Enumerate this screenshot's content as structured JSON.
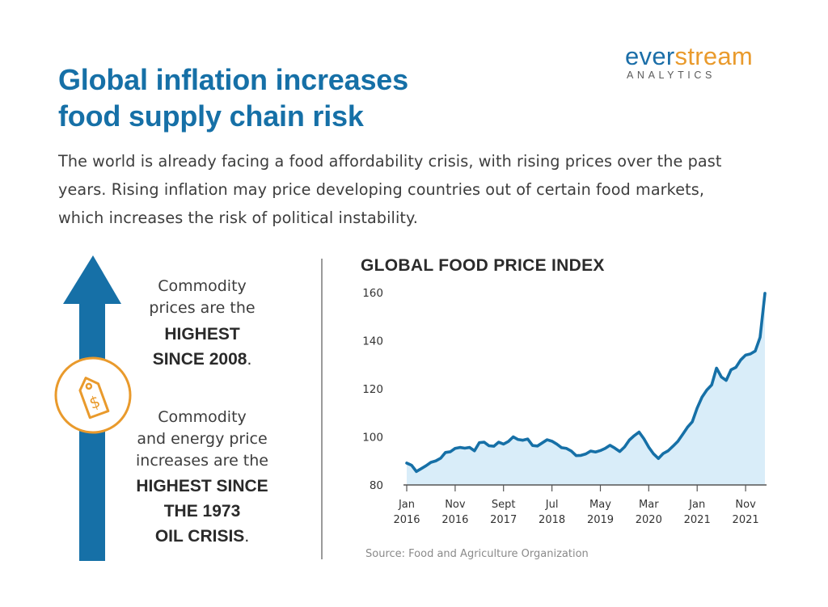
{
  "brand": {
    "logo_part1": "ever",
    "logo_part2": "stream",
    "logo_sub": "ANALYTICS",
    "color_primary": "#1b6ea8",
    "color_accent": "#e99a2c"
  },
  "header": {
    "title_line1": "Global inflation increases",
    "title_line2": "food supply chain risk",
    "intro": "The world is already facing a food affordability crisis, with rising prices over the past years. Rising inflation may price developing countries out of certain food markets, which increases the risk of political instability."
  },
  "left_panel": {
    "arrow_icon": "up-arrow-icon",
    "tag_icon": "dollar-price-tag-icon",
    "stat1_line1": "Commodity",
    "stat1_line2": "prices are the",
    "stat1_bold1": "HIGHEST",
    "stat1_bold2": "SINCE 2008",
    "stat1_end": ".",
    "stat2_line1": "Commodity",
    "stat2_line2": "and energy price",
    "stat2_line3": "increases are the",
    "stat2_bold1": "HIGHEST SINCE",
    "stat2_bold2": "THE 1973",
    "stat2_bold3": "OIL CRISIS",
    "stat2_end": "."
  },
  "chart_data": {
    "type": "area",
    "title": "GLOBAL FOOD PRICE INDEX",
    "xlabel": "",
    "ylabel": "",
    "ylim": [
      80,
      160
    ],
    "yticks": [
      "80",
      "100",
      "120",
      "140",
      "160"
    ],
    "xticks": [
      {
        "line1": "Jan",
        "line2": "2016",
        "month_index": 0
      },
      {
        "line1": "Nov",
        "line2": "2016",
        "month_index": 10
      },
      {
        "line1": "Sept",
        "line2": "2017",
        "month_index": 20
      },
      {
        "line1": "Jul",
        "line2": "2018",
        "month_index": 30
      },
      {
        "line1": "May",
        "line2": "2019",
        "month_index": 40
      },
      {
        "line1": "Mar",
        "line2": "2020",
        "month_index": 50
      },
      {
        "line1": "Jan",
        "line2": "2021",
        "month_index": 60
      },
      {
        "line1": "Nov",
        "line2": "2021",
        "month_index": 70
      }
    ],
    "series": [
      {
        "start": "Jan 2016",
        "frequency": "monthly",
        "values": [
          89.1,
          88.2,
          85.6,
          86.8,
          88.0,
          89.4,
          90.0,
          91.1,
          93.5,
          93.8,
          95.2,
          95.6,
          95.3,
          95.6,
          94.2,
          97.6,
          97.8,
          96.3,
          96.1,
          97.8,
          97.0,
          98.1,
          100.0,
          98.9,
          98.6,
          99.1,
          96.4,
          96.2,
          97.5,
          98.8,
          98.2,
          97.0,
          95.5,
          95.2,
          94.1,
          92.2,
          92.3,
          92.9,
          94.1,
          93.7,
          94.3,
          95.2,
          96.5,
          95.3,
          93.9,
          95.8,
          98.7,
          100.5,
          102.0,
          99.2,
          95.7,
          92.9,
          91.0,
          93.1,
          94.2,
          96.1,
          98.1,
          101.0,
          104.0,
          106.3,
          112.0,
          116.5,
          119.5,
          121.6,
          128.6,
          124.9,
          123.5,
          127.9,
          128.9,
          132.0,
          134.0,
          134.5,
          135.7,
          141.4,
          159.7
        ]
      }
    ],
    "line_color": "#1670a7",
    "area_color": "#d9edf9",
    "grid": false,
    "legend": "none"
  },
  "source": "Source: Food and Agriculture Organization"
}
